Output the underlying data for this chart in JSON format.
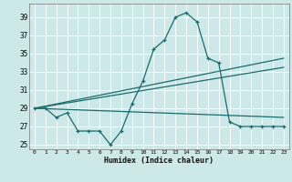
{
  "title": "",
  "xlabel": "Humidex (Indice chaleur)",
  "bg_color": "#cce8e8",
  "grid_color": "#aad4d4",
  "line_color": "#1a6b6b",
  "xlim": [
    -0.5,
    23.5
  ],
  "ylim": [
    24.5,
    40.5
  ],
  "xticks": [
    0,
    1,
    2,
    3,
    4,
    5,
    6,
    7,
    8,
    9,
    10,
    11,
    12,
    13,
    14,
    15,
    16,
    17,
    18,
    19,
    20,
    21,
    22,
    23
  ],
  "yticks": [
    25,
    27,
    29,
    31,
    33,
    35,
    37,
    39
  ],
  "series1_x": [
    0,
    1,
    2,
    3,
    4,
    5,
    6,
    7,
    8,
    9,
    10,
    11,
    12,
    13,
    14,
    15,
    16,
    17,
    18,
    19,
    20,
    21,
    22,
    23
  ],
  "series1_y": [
    29.0,
    29.0,
    28.0,
    28.5,
    26.5,
    26.5,
    26.5,
    25.0,
    26.5,
    29.5,
    32.0,
    35.5,
    36.5,
    39.0,
    39.5,
    38.5,
    34.5,
    34.0,
    27.5,
    27.0,
    27.0,
    27.0,
    27.0,
    27.0
  ],
  "trend1_x": [
    0,
    23
  ],
  "trend1_y": [
    29.0,
    34.5
  ],
  "trend2_x": [
    0,
    23
  ],
  "trend2_y": [
    29.0,
    33.5
  ],
  "trend3_x": [
    0,
    23
  ],
  "trend3_y": [
    29.0,
    28.0
  ]
}
